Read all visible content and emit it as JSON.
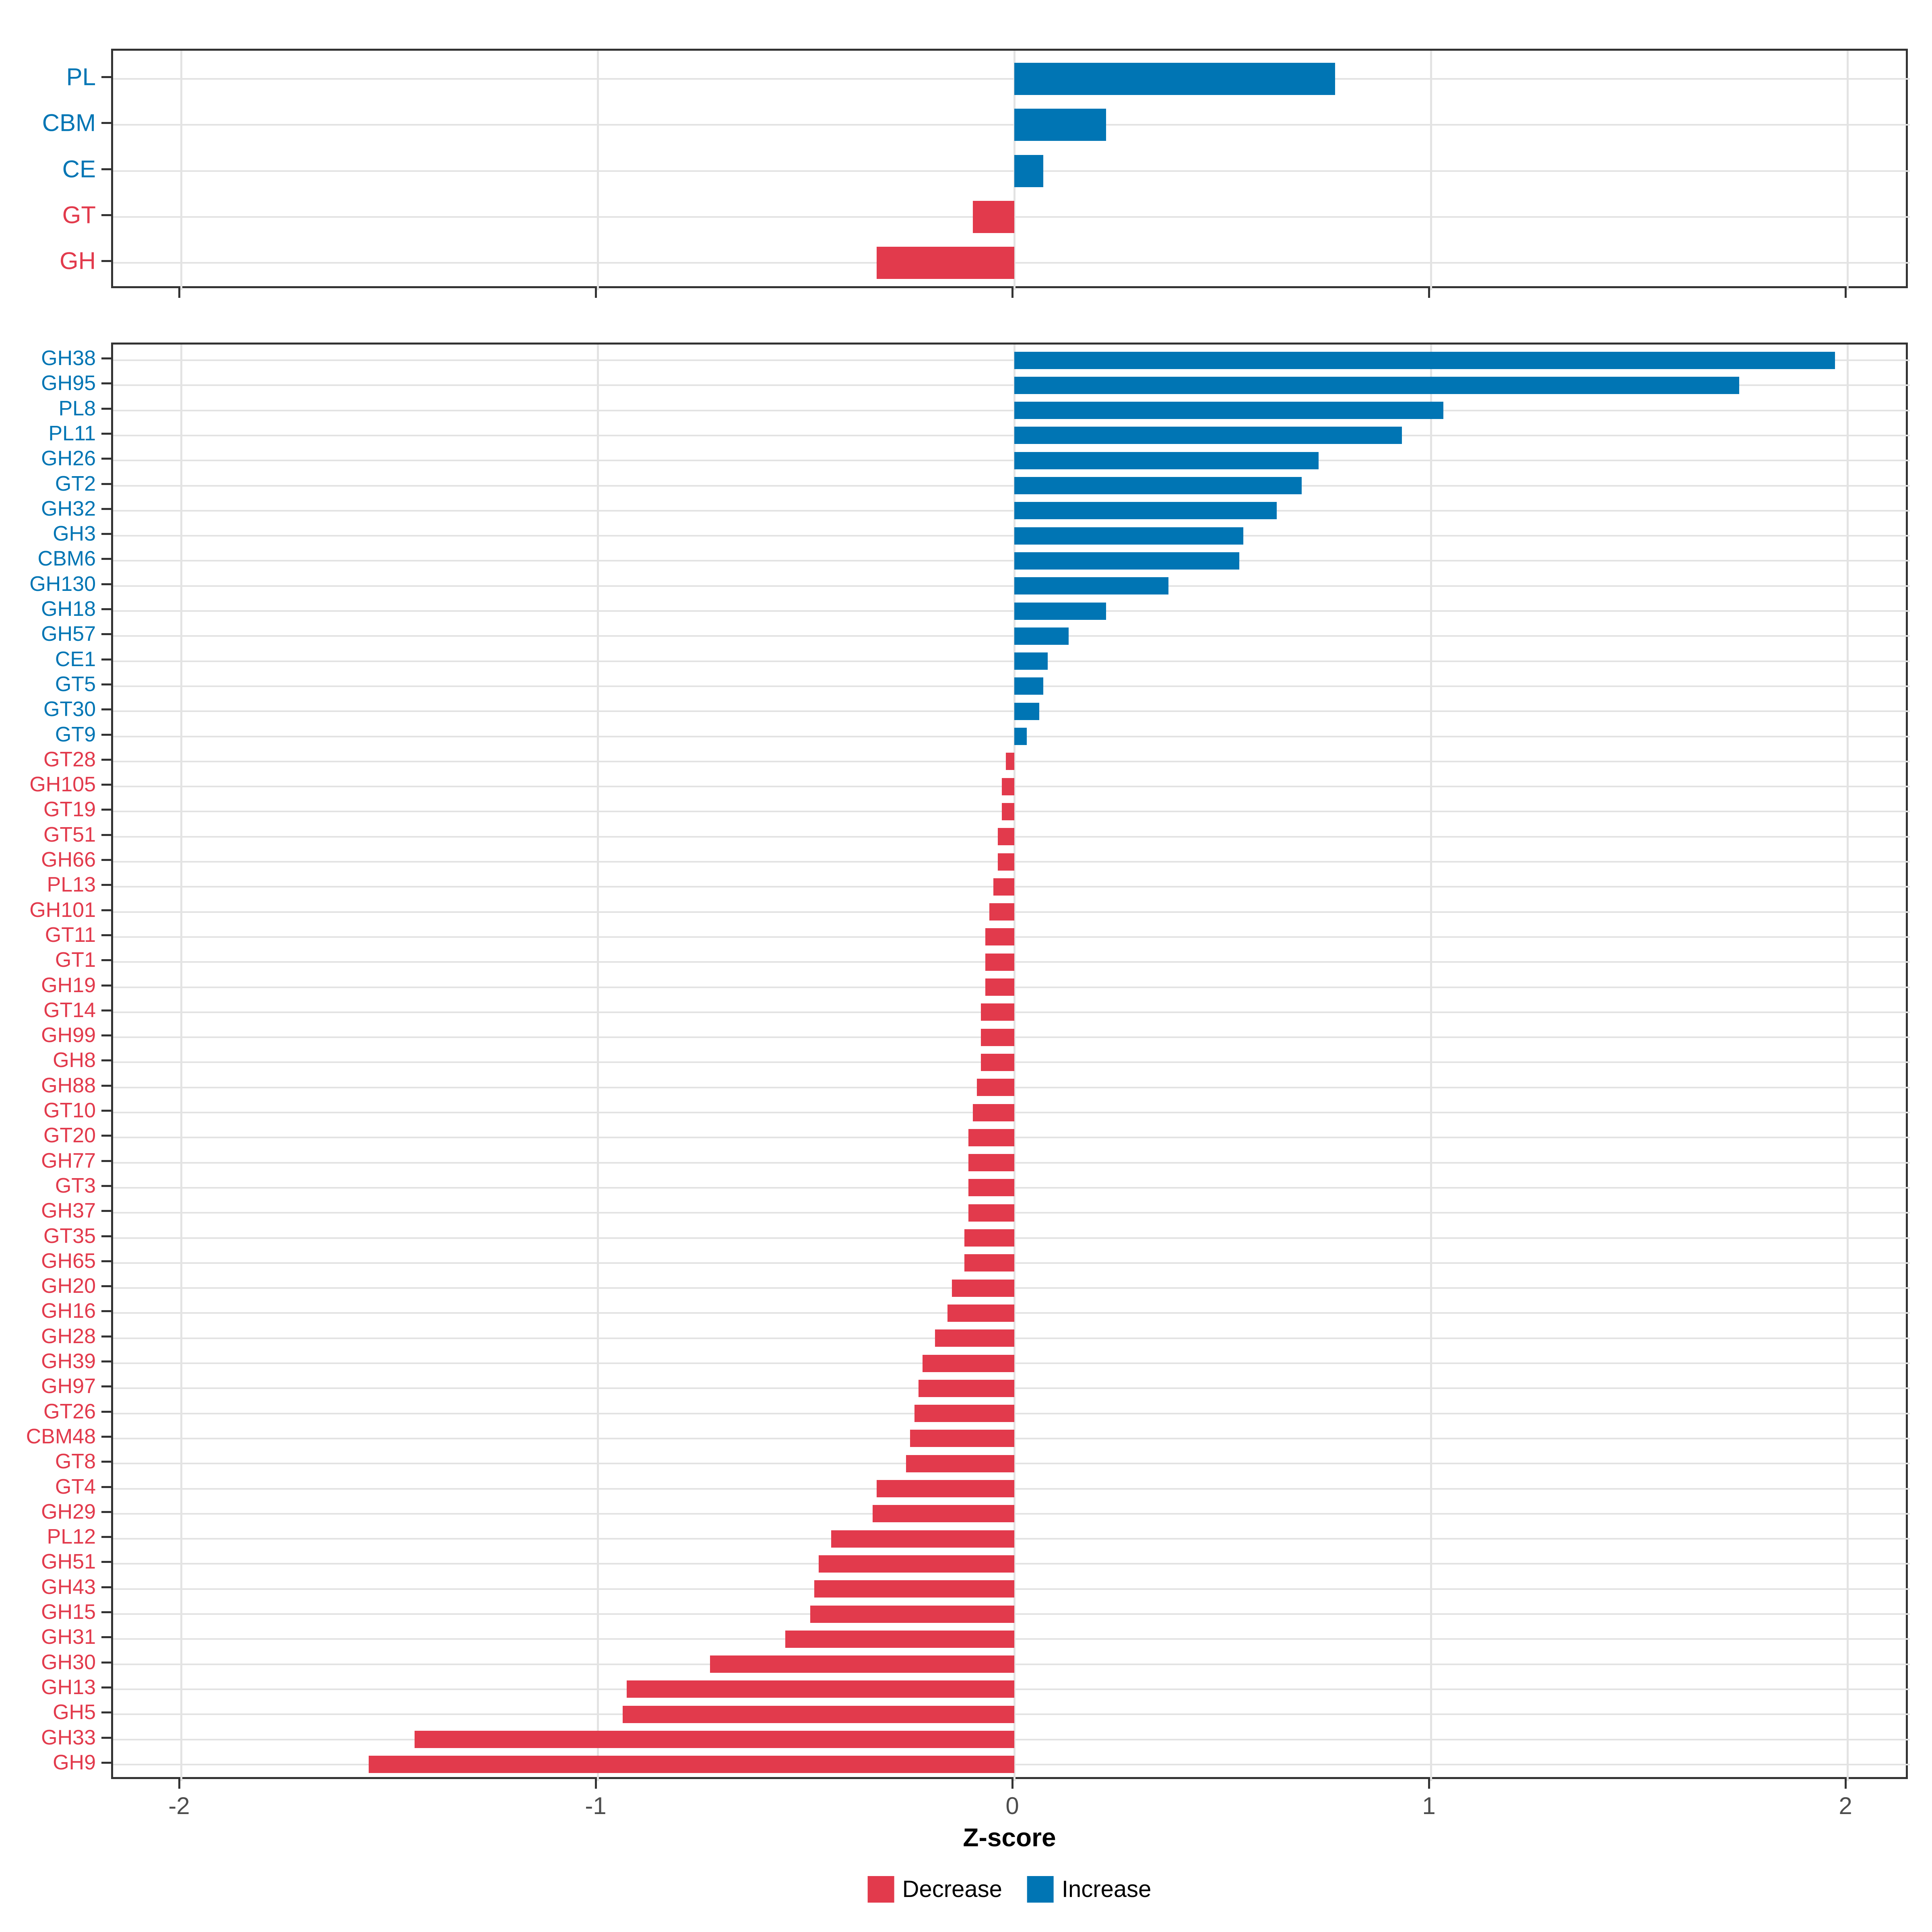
{
  "axis": {
    "title": "Z-score",
    "ticks": [
      -2,
      -1,
      0,
      1,
      2
    ],
    "tick_labels": [
      "-2",
      "-1",
      "0",
      "1",
      "2"
    ]
  },
  "colors": {
    "increase": "#0075B4",
    "decrease": "#E23A4C",
    "gridline": "#E3E3E3",
    "panel_border": "#333333",
    "tick_label": "#4D4D4D"
  },
  "legend": {
    "items": [
      {
        "label": "Decrease",
        "color_key": "decrease"
      },
      {
        "label": "Increase",
        "color_key": "increase"
      }
    ]
  },
  "chart_data": [
    {
      "type": "bar",
      "orientation": "horizontal",
      "panel": "class-summary",
      "title": "",
      "xlabel": "Z-score",
      "ylabel": "",
      "xlim": [
        -2.16,
        2.15
      ],
      "grid": true,
      "categories": [
        "PL",
        "CBM",
        "CE",
        "GT",
        "GH"
      ],
      "values": [
        0.77,
        0.22,
        0.07,
        -0.1,
        -0.33
      ]
    },
    {
      "type": "bar",
      "orientation": "horizontal",
      "panel": "family-detail",
      "title": "",
      "xlabel": "Z-score",
      "ylabel": "",
      "xlim": [
        -2.16,
        2.15
      ],
      "grid": true,
      "categories": [
        "GH38",
        "GH95",
        "PL8",
        "PL11",
        "GH26",
        "GT2",
        "GH32",
        "GH3",
        "CBM6",
        "GH130",
        "GH18",
        "GH57",
        "CE1",
        "GT5",
        "GT30",
        "GT9",
        "GT28",
        "GH105",
        "GT19",
        "GT51",
        "GH66",
        "PL13",
        "GH101",
        "GT11",
        "GT1",
        "GH19",
        "GT14",
        "GH99",
        "GH8",
        "GH88",
        "GT10",
        "GT20",
        "GH77",
        "GT3",
        "GH37",
        "GT35",
        "GH65",
        "GH20",
        "GH16",
        "GH28",
        "GH39",
        "GH97",
        "GT26",
        "CBM48",
        "GT8",
        "GT4",
        "GH29",
        "PL12",
        "GH51",
        "GH43",
        "GH15",
        "GH31",
        "GH30",
        "GH13",
        "GH5",
        "GH33",
        "GH9"
      ],
      "values": [
        1.97,
        1.74,
        1.03,
        0.93,
        0.73,
        0.69,
        0.63,
        0.55,
        0.54,
        0.37,
        0.22,
        0.13,
        0.08,
        0.07,
        0.06,
        0.03,
        -0.02,
        -0.03,
        -0.03,
        -0.04,
        -0.04,
        -0.05,
        -0.06,
        -0.07,
        -0.07,
        -0.07,
        -0.08,
        -0.08,
        -0.08,
        -0.09,
        -0.1,
        -0.11,
        -0.11,
        -0.11,
        -0.11,
        -0.12,
        -0.12,
        -0.15,
        -0.16,
        -0.19,
        -0.22,
        -0.23,
        -0.24,
        -0.25,
        -0.26,
        -0.33,
        -0.34,
        -0.44,
        -0.47,
        -0.48,
        -0.49,
        -0.55,
        -0.73,
        -0.93,
        -0.94,
        -1.44,
        -1.55
      ]
    }
  ]
}
